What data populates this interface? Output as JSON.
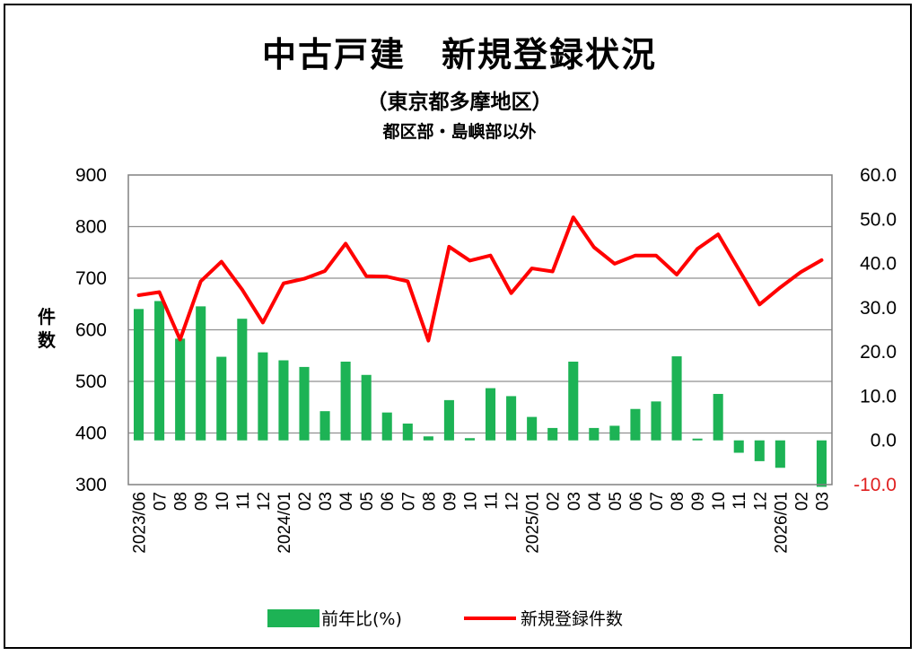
{
  "title": "中古戸建　新規登録状況",
  "subtitle": "（東京都多摩地区）",
  "subtitle2": "都区部・島嶼部以外",
  "chart_data": {
    "type": "bar+line",
    "ylabel_left": "件数",
    "ylim_left": [
      300,
      900
    ],
    "yticks_left": [
      "900",
      "800",
      "700",
      "600",
      "500",
      "400",
      "300"
    ],
    "ylim_right": [
      -10,
      60
    ],
    "yticks_right": [
      "60.0",
      "50.0",
      "40.0",
      "30.0",
      "20.0",
      "10.0",
      "0.0",
      "-10.0"
    ],
    "categories": [
      "2023/06",
      "07",
      "08",
      "09",
      "10",
      "11",
      "12",
      "2024/01",
      "02",
      "03",
      "04",
      "05",
      "06",
      "07",
      "08",
      "09",
      "10",
      "11",
      "12",
      "2025/01",
      "02",
      "03",
      "04",
      "05",
      "06",
      "07",
      "08",
      "09",
      "10",
      "11",
      "12",
      "2026/01",
      "02",
      "03"
    ],
    "series": [
      {
        "name": "前年比(%)",
        "type": "bar",
        "axis": "right",
        "color": "#1db355",
        "values": [
          29.7,
          31.5,
          23.0,
          30.3,
          18.9,
          27.5,
          19.9,
          18.1,
          16.6,
          6.6,
          17.8,
          14.8,
          6.3,
          3.8,
          0.9,
          9.1,
          0.5,
          11.8,
          10.0,
          5.3,
          2.8,
          17.8,
          2.8,
          3.3,
          7.1,
          8.8,
          19.0,
          0.4,
          10.5,
          -2.8,
          -4.7,
          -6.2,
          null,
          -10.5
        ]
      },
      {
        "name": "新規登録件数",
        "type": "line",
        "axis": "left",
        "color": "#ff0000",
        "values": [
          667,
          673,
          581,
          694,
          732,
          678,
          614,
          690,
          699,
          714,
          767,
          704,
          703,
          694,
          579,
          761,
          734,
          744,
          671,
          719,
          713,
          818,
          760,
          728,
          744,
          744,
          707,
          757,
          785,
          717,
          649,
          682,
          712,
          735
        ]
      }
    ],
    "legend_position": "bottom",
    "grid": true
  }
}
